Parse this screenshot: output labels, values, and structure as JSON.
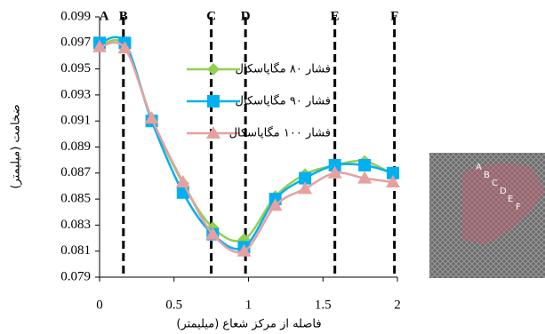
{
  "chart_data": {
    "type": "line",
    "x_label": "فاصله از مرکز شعاع (میلیمتر)",
    "y_label": "ضخامت (میلیمتر)",
    "x": [
      0,
      0.17,
      0.35,
      0.56,
      0.76,
      0.97,
      1.18,
      1.38,
      1.58,
      1.78,
      1.97
    ],
    "series": [
      {
        "name": "فشار ۸۰ مگاپاسکال",
        "color": "#92d050",
        "marker": "diamond",
        "values": [
          0.0968,
          0.0968,
          0.0912,
          0.0862,
          0.0828,
          0.0819,
          0.0852,
          0.0869,
          0.0876,
          0.0879,
          0.0869
        ]
      },
      {
        "name": "فشار ۹۰ مگاپاسکال",
        "color": "#00b0f0",
        "marker": "square",
        "values": [
          0.097,
          0.097,
          0.091,
          0.0855,
          0.0823,
          0.0813,
          0.085,
          0.0866,
          0.0876,
          0.0876,
          0.087
        ]
      },
      {
        "name": "فشار ۱۰۰ مگاپاسکال",
        "color": "#e6a0a0",
        "marker": "triangle",
        "values": [
          0.0967,
          0.0966,
          0.0912,
          0.0863,
          0.0823,
          0.081,
          0.0845,
          0.0858,
          0.087,
          0.0866,
          0.0863
        ]
      }
    ],
    "xlim": [
      0,
      2
    ],
    "xticks": [
      0,
      0.5,
      1,
      1.5,
      2
    ],
    "ylim": [
      0.079,
      0.099
    ],
    "yticks": [
      0.079,
      0.081,
      0.083,
      0.085,
      0.087,
      0.089,
      0.091,
      0.093,
      0.095,
      0.097,
      0.099
    ],
    "markers": [
      {
        "label": "A",
        "x": 0
      },
      {
        "label": "B",
        "x": 0.16
      },
      {
        "label": "C",
        "x": 0.75
      },
      {
        "label": "D",
        "x": 0.98
      },
      {
        "label": "E",
        "x": 1.58
      },
      {
        "label": "F",
        "x": 1.98
      }
    ]
  },
  "inset": {
    "labels": [
      "A",
      "B",
      "C",
      "D",
      "E",
      "F"
    ]
  }
}
